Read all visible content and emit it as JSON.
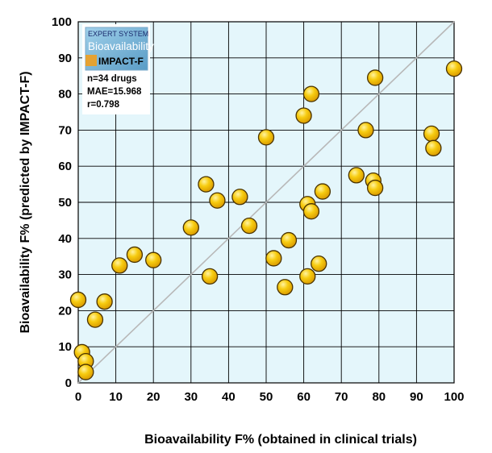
{
  "chart_data": {
    "type": "scatter",
    "title": "",
    "xlabel": "Bioavailability F%  (obtained in clinical trials)",
    "ylabel": "Bioavailability F%  (predicted by IMPACT-F)",
    "xlim": [
      0,
      100
    ],
    "ylim": [
      0,
      100
    ],
    "x_ticks": [
      "0",
      "10",
      "20",
      "30",
      "40",
      "50",
      "60",
      "70",
      "80",
      "90",
      "100"
    ],
    "y_ticks": [
      "0",
      "10",
      "20",
      "30",
      "40",
      "50",
      "60",
      "70",
      "80",
      "90",
      "100"
    ],
    "grid": true,
    "reference_line": "y = x",
    "point_color": "#f5c400",
    "background_color": "#e4f6fb",
    "points": [
      {
        "x": 0,
        "y": 23
      },
      {
        "x": 1,
        "y": 8.5
      },
      {
        "x": 2,
        "y": 6
      },
      {
        "x": 2,
        "y": 3
      },
      {
        "x": 4.5,
        "y": 17.5
      },
      {
        "x": 7,
        "y": 22.5
      },
      {
        "x": 11,
        "y": 32.5
      },
      {
        "x": 15,
        "y": 35.5
      },
      {
        "x": 20,
        "y": 34
      },
      {
        "x": 30,
        "y": 43
      },
      {
        "x": 34,
        "y": 55
      },
      {
        "x": 35,
        "y": 29.5
      },
      {
        "x": 37,
        "y": 50.5
      },
      {
        "x": 43,
        "y": 51.5
      },
      {
        "x": 45.5,
        "y": 43.5
      },
      {
        "x": 50,
        "y": 68
      },
      {
        "x": 52,
        "y": 34.5
      },
      {
        "x": 55,
        "y": 26.5
      },
      {
        "x": 56,
        "y": 39.5
      },
      {
        "x": 60,
        "y": 74
      },
      {
        "x": 61,
        "y": 49.5
      },
      {
        "x": 61,
        "y": 29.5
      },
      {
        "x": 62,
        "y": 47.5
      },
      {
        "x": 62,
        "y": 80
      },
      {
        "x": 64,
        "y": 33
      },
      {
        "x": 65,
        "y": 53
      },
      {
        "x": 74,
        "y": 57.5
      },
      {
        "x": 76.5,
        "y": 70
      },
      {
        "x": 78.5,
        "y": 56
      },
      {
        "x": 79,
        "y": 54
      },
      {
        "x": 79,
        "y": 84.5
      },
      {
        "x": 94,
        "y": 69
      },
      {
        "x": 94.5,
        "y": 65
      },
      {
        "x": 100,
        "y": 87
      }
    ]
  },
  "legend_box": {
    "label_line1": "EXPERT SYSTEM",
    "label_line2": "Bioavailability",
    "label_line3": "IMPACT-F",
    "stats": [
      "n=34 drugs",
      "MAE=15.968",
      "r=0.798"
    ]
  }
}
